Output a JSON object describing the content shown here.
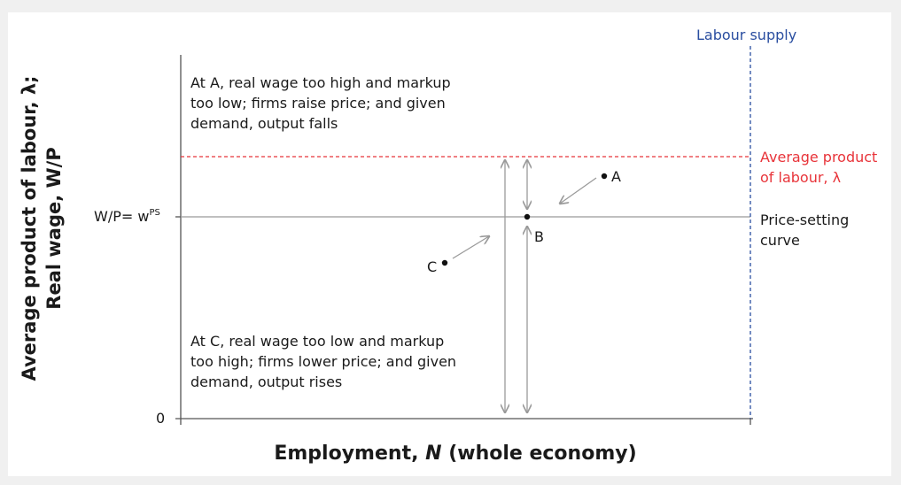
{
  "diagram": {
    "y_axis_title_line1": "Average product of labour, λ;",
    "y_axis_title_line2": "Real wage, W/P",
    "x_axis_title_prefix": "Employment, ",
    "x_axis_title_var": "N",
    "x_axis_title_suffix": " (whole economy)",
    "y_tick_wage_prefix": "W/P=  w",
    "y_tick_wage_sup": "PS",
    "y_tick_zero": "0",
    "label_labour_supply": "Labour supply",
    "label_apl_line1": "Average product",
    "label_apl_line2": "of labour, λ",
    "label_ps_line1": "Price-setting",
    "label_ps_line2": "curve",
    "point_a": "A",
    "point_b": "B",
    "point_c": "C",
    "note_a_lines": [
      "At A, real wage too high and markup",
      "too low; firms raise price; and given",
      "demand, output falls"
    ],
    "note_c_lines": [
      "At C, real wage too low and markup",
      "too high; firms lower price; and given",
      "demand, output rises"
    ],
    "colors": {
      "axis": "#555555",
      "apl_line": "#e8343a",
      "labour_supply": "#2a4ea0",
      "ps_line": "#999999",
      "arrow": "#9a9a9a",
      "text": "#1a1a1a"
    }
  }
}
